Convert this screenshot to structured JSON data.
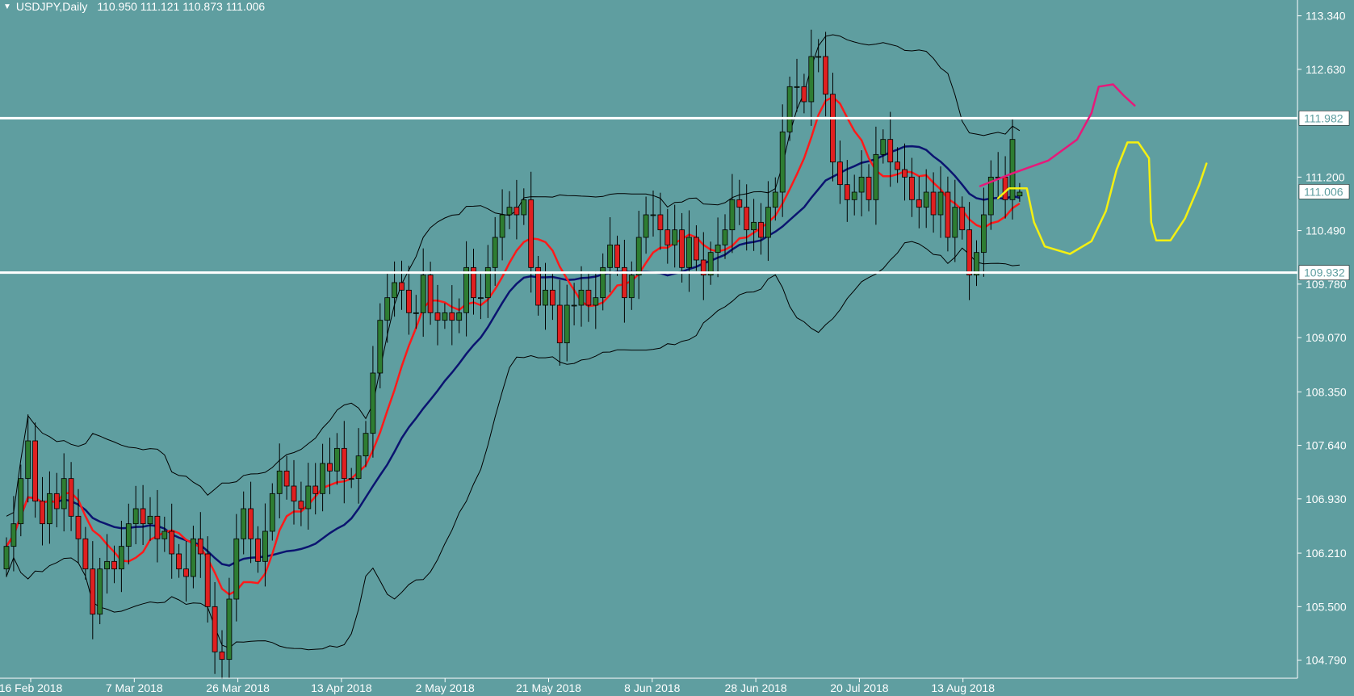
{
  "header": {
    "symbol": "USDJPY,Daily",
    "ohlc": "110.950 111.121 110.873 111.006"
  },
  "colors": {
    "background": "#5f9ea0",
    "bull_candle": "#2e7d32",
    "bear_candle": "#e02020",
    "ma_fast": "#ff1a1a",
    "ma_slow": "#0b1470",
    "bands": "#000000",
    "level_lines": "#ffffff",
    "drawing_pink": "#e6197a",
    "drawing_yellow": "#f4f011"
  },
  "chart_data": {
    "type": "candlestick",
    "symbol": "USDJPY",
    "timeframe": "Daily",
    "last_bar": {
      "open": 110.95,
      "high": 111.121,
      "low": 110.873,
      "close": 111.006
    },
    "price_axis": {
      "ticks": [
        "113.340",
        "112.630",
        "111.200",
        "110.490",
        "109.780",
        "109.070",
        "108.350",
        "107.640",
        "106.930",
        "106.210",
        "105.500",
        "104.790"
      ],
      "tagged_prices": [
        "111.982",
        "111.006",
        "109.932"
      ],
      "range": [
        104.55,
        113.55
      ]
    },
    "date_labels": [
      "16 Feb 2018",
      "7 Mar 2018",
      "26 Mar 2018",
      "13 Apr 2018",
      "2 May 2018",
      "21 May 2018",
      "8 Jun 2018",
      "28 Jun 2018",
      "20 Jul 2018",
      "13 Aug 2018"
    ],
    "horizontal_levels": [
      111.982,
      109.932
    ],
    "closes": [
      106.3,
      106.6,
      107.2,
      107.7,
      106.9,
      106.6,
      107.0,
      106.8,
      107.2,
      106.7,
      106.4,
      106.0,
      105.4,
      106.0,
      106.1,
      106.0,
      106.3,
      106.6,
      106.8,
      106.6,
      106.7,
      106.4,
      106.5,
      106.2,
      106.0,
      105.9,
      106.4,
      106.2,
      105.5,
      104.9,
      104.8,
      105.6,
      106.4,
      106.8,
      106.4,
      106.1,
      106.5,
      107.0,
      107.3,
      107.1,
      106.9,
      106.8,
      107.1,
      107.0,
      107.4,
      107.3,
      107.6,
      107.2,
      107.2,
      107.5,
      107.8,
      108.6,
      109.3,
      109.6,
      109.8,
      109.7,
      109.4,
      109.4,
      109.9,
      109.4,
      109.3,
      109.4,
      109.3,
      109.4,
      110.0,
      109.6,
      109.6,
      110.0,
      110.4,
      110.7,
      110.8,
      110.7,
      110.9,
      110.0,
      109.5,
      109.7,
      109.5,
      109.0,
      109.5,
      109.5,
      109.7,
      109.5,
      109.6,
      110.0,
      110.3,
      110.0,
      109.6,
      109.9,
      110.4,
      110.7,
      110.7,
      110.5,
      110.3,
      110.5,
      110.0,
      110.4,
      110.1,
      109.9,
      110.2,
      110.3,
      110.5,
      110.9,
      110.8,
      110.5,
      110.6,
      110.4,
      110.8,
      111.0,
      111.8,
      112.4,
      112.4,
      112.2,
      112.8,
      112.8,
      112.3,
      111.4,
      111.1,
      110.9,
      111.0,
      111.2,
      110.9,
      111.5,
      111.7,
      111.4,
      111.3,
      111.2,
      110.9,
      110.8,
      111.0,
      110.7,
      111.0,
      110.4,
      110.8,
      110.5,
      109.9,
      110.2,
      110.7,
      111.2,
      111.2,
      110.9,
      111.7,
      111.0
    ]
  }
}
